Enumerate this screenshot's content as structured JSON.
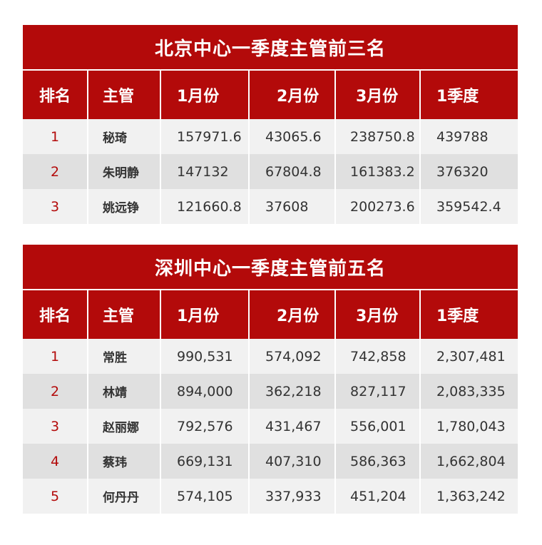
{
  "colors": {
    "accent": "#b30a0a",
    "row_light": "#f1f1f1",
    "row_dark": "#e0e0e0"
  },
  "headers": [
    "排名",
    "主管",
    "1月份",
    "2月份",
    "3月份",
    "1季度"
  ],
  "beijing": {
    "title": "北京中心一季度主管前三名",
    "rows": [
      [
        "1",
        "秘琦",
        "157971.6",
        "43065.6",
        "238750.8",
        "439788"
      ],
      [
        "2",
        "朱明静",
        "147132",
        "67804.8",
        "161383.2",
        "376320"
      ],
      [
        "3",
        "姚远铮",
        "121660.8",
        "37608",
        "200273.6",
        "359542.4"
      ]
    ]
  },
  "shenzhen": {
    "title": "深圳中心一季度主管前五名",
    "rows": [
      [
        "1",
        "常胜",
        "990,531",
        "574,092",
        "742,858",
        "2,307,481"
      ],
      [
        "2",
        "林靖",
        "894,000",
        "362,218",
        "827,117",
        "2,083,335"
      ],
      [
        "3",
        "赵丽娜",
        "792,576",
        "431,467",
        "556,001",
        "1,780,043"
      ],
      [
        "4",
        "蔡玮",
        "669,131",
        "407,310",
        "586,363",
        "1,662,804"
      ],
      [
        "5",
        "何丹丹",
        "574,105",
        "337,933",
        "451,204",
        "1,363,242"
      ]
    ]
  }
}
